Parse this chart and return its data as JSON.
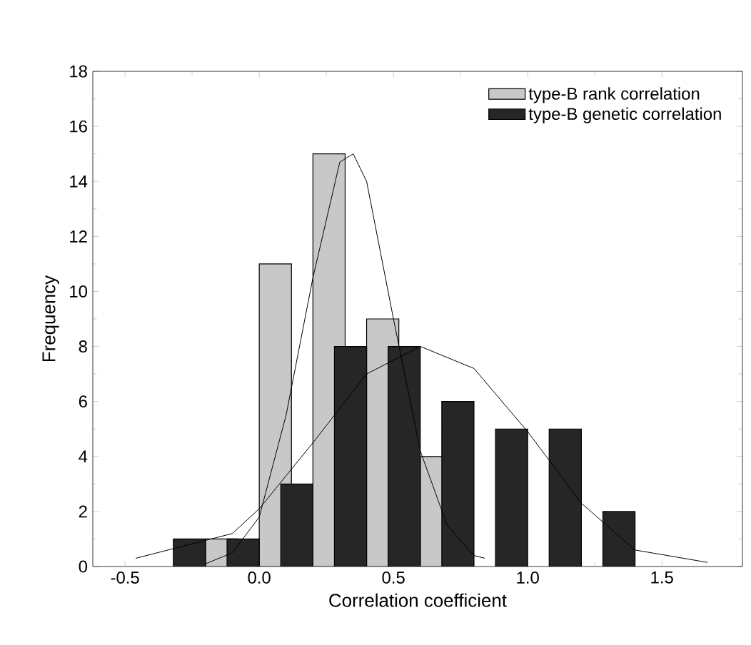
{
  "chart_data": {
    "type": "bar",
    "xlabel": "Correlation coefficient",
    "ylabel": "Frequency",
    "xlim": [
      -0.62,
      1.8
    ],
    "ylim": [
      0,
      18
    ],
    "xticks": [
      {
        "value": -0.5,
        "label": "-0.5"
      },
      {
        "value": 0,
        "label": "0.0"
      },
      {
        "value": 0.5,
        "label": "0.5"
      },
      {
        "value": 1,
        "label": "1.0"
      },
      {
        "value": 1.5,
        "label": "1.5"
      }
    ],
    "yticks": [
      0,
      2,
      4,
      6,
      8,
      10,
      12,
      14,
      16,
      18
    ],
    "legend": "top right",
    "series": [
      {
        "name": "type-B rank correlation",
        "color": "#c8c8c8",
        "x": [
          -0.14,
          0.06,
          0.26,
          0.46,
          0.66
        ],
        "values": [
          1,
          11,
          15,
          9,
          4
        ]
      },
      {
        "name": "type-B genetic correlation",
        "color": "#262626",
        "x": [
          -0.26,
          -0.06,
          0.14,
          0.34,
          0.54,
          0.74,
          0.94,
          1.14,
          1.34
        ],
        "values": [
          1,
          1,
          3,
          8,
          8,
          6,
          5,
          5,
          2
        ]
      },
      {
        "type": "line",
        "color": "#000000",
        "x": [
          -0.2,
          -0.1,
          0.0,
          0.1,
          0.2,
          0.3,
          0.35,
          0.4,
          0.5,
          0.6,
          0.7,
          0.8,
          0.84
        ],
        "values": [
          0.1,
          0.5,
          1.8,
          5.5,
          10.5,
          14.7,
          15,
          14,
          9,
          4.2,
          1.5,
          0.4,
          0.3
        ]
      },
      {
        "type": "line",
        "color": "#000000",
        "x": [
          -0.46,
          -0.3,
          -0.1,
          0.0,
          0.2,
          0.4,
          0.6,
          0.8,
          1.0,
          1.2,
          1.4,
          1.67
        ],
        "values": [
          0.3,
          0.7,
          1.2,
          2.1,
          4.5,
          7,
          8,
          7.2,
          4.9,
          2.3,
          0.6,
          0.15
        ]
      }
    ]
  }
}
